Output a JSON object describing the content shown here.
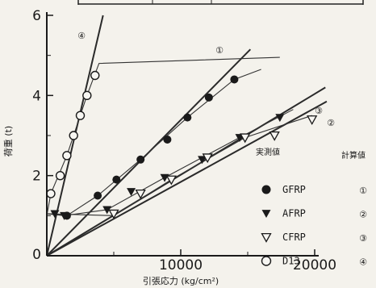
{
  "chart_data": {
    "type": "scatter",
    "xlabel": "引張応力 (kg/cm²)",
    "ylabel": "荷重 (t)",
    "xlim": [
      0,
      20000
    ],
    "ylim": [
      0,
      6
    ],
    "x_ticks": [
      "0",
      "10000",
      "20000"
    ],
    "y_ticks": [
      "0",
      "2",
      "4",
      "6"
    ],
    "legend": {
      "measured_header": "実測値",
      "calculated_header": "計算値",
      "placement": "bottom-right"
    },
    "series": [
      {
        "name": "GFRP",
        "marker": "filled-circle",
        "calc_label": "①",
        "points": [
          [
            1500,
            1.0
          ],
          [
            3800,
            1.5
          ],
          [
            5200,
            1.9
          ],
          [
            7000,
            2.4
          ],
          [
            9000,
            2.9
          ],
          [
            10500,
            3.45
          ],
          [
            12100,
            3.95
          ],
          [
            14000,
            4.4
          ]
        ],
        "calc_line": [
          [
            0,
            0
          ],
          [
            15200,
            5.15
          ]
        ],
        "fit_curve": [
          [
            0,
            1.05
          ],
          [
            1500,
            1.0
          ],
          [
            3800,
            1.5
          ],
          [
            7000,
            2.4
          ],
          [
            10500,
            3.45
          ],
          [
            14000,
            4.4
          ],
          [
            16000,
            4.65
          ]
        ]
      },
      {
        "name": "AFRP",
        "marker": "filled-triangle-down",
        "calc_label": "②",
        "points": [
          [
            600,
            1.05
          ],
          [
            1300,
            1.0
          ],
          [
            4500,
            1.15
          ],
          [
            6300,
            1.6
          ],
          [
            8800,
            1.95
          ],
          [
            11600,
            2.4
          ],
          [
            14400,
            2.95
          ],
          [
            17400,
            3.45
          ]
        ],
        "calc_line": [
          [
            0,
            0
          ],
          [
            20900,
            3.85
          ]
        ],
        "fit_curve": [
          [
            0,
            1.05
          ],
          [
            1300,
            1.0
          ],
          [
            4500,
            1.15
          ],
          [
            8800,
            1.95
          ],
          [
            14400,
            2.95
          ],
          [
            18400,
            3.65
          ]
        ]
      },
      {
        "name": "CFRP",
        "marker": "open-triangle-down",
        "calc_label": "③",
        "points": [
          [
            5000,
            1.05
          ],
          [
            7000,
            1.55
          ],
          [
            9300,
            1.9
          ],
          [
            12000,
            2.45
          ],
          [
            14800,
            2.95
          ],
          [
            17000,
            3.0
          ],
          [
            19800,
            3.4
          ]
        ],
        "calc_line": [
          [
            0,
            0
          ],
          [
            20800,
            4.2
          ]
        ],
        "fit_curve": [
          [
            0,
            1.05
          ],
          [
            5000,
            1.0
          ],
          [
            9300,
            1.9
          ],
          [
            14800,
            2.95
          ],
          [
            19800,
            3.5
          ]
        ]
      },
      {
        "name": "D13",
        "marker": "open-circle",
        "calc_label": "④",
        "points": [
          [
            300,
            1.55
          ],
          [
            1000,
            2.0
          ],
          [
            1500,
            2.5
          ],
          [
            2000,
            3.0
          ],
          [
            2500,
            3.5
          ],
          [
            3000,
            4.0
          ],
          [
            3600,
            4.5
          ]
        ],
        "calc_line": [
          [
            0,
            0
          ],
          [
            4200,
            6.0
          ]
        ],
        "fit_curve": [
          [
            0,
            1.0
          ],
          [
            300,
            1.55
          ],
          [
            1500,
            2.5
          ],
          [
            3000,
            4.0
          ],
          [
            3900,
            4.8
          ],
          [
            17400,
            4.95
          ]
        ]
      }
    ]
  }
}
